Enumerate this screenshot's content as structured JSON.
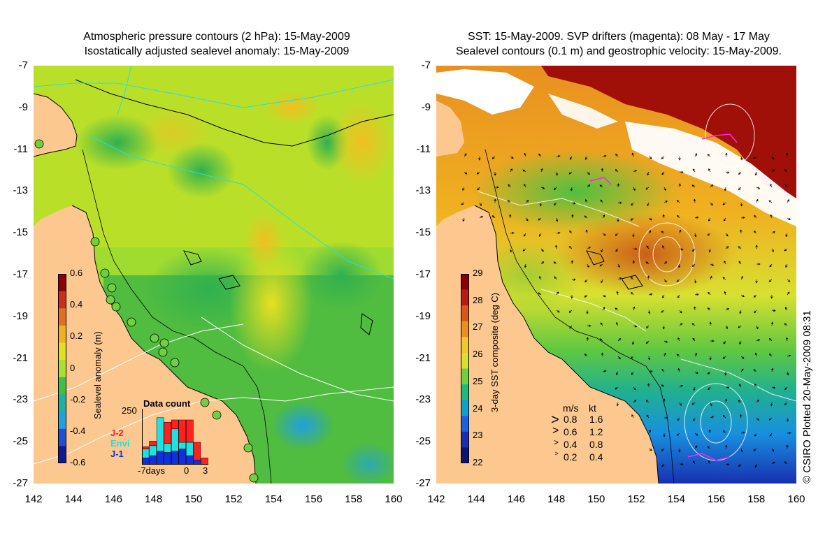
{
  "left_panel": {
    "title_line1": "Atmospheric pressure contours (2 hPa): 15-May-2009",
    "title_line2": "Isostatically adjusted sealevel anomaly: 15-May-2009",
    "colorbar": {
      "label": "Sealevel anomaly (m)",
      "ticks": [
        "0.6",
        "0.4",
        "0.2",
        "0",
        "-0.2",
        "-0.4",
        "-0.6"
      ],
      "colors": [
        "#8b0000",
        "#c8301a",
        "#e07020",
        "#f0b020",
        "#e0e020",
        "#a8e030",
        "#40c040",
        "#20b0a0",
        "#20a0e0",
        "#2050d0",
        "#101a90"
      ]
    },
    "inset": {
      "title": "Data count",
      "ymax_label": "250",
      "legend": [
        {
          "name": "J-2",
          "color": "#ff2020"
        },
        {
          "name": "Envi",
          "color": "#20e0e0"
        },
        {
          "name": "J-1",
          "color": "#1030e0"
        }
      ],
      "xlabels": [
        "-7days",
        "0",
        "3"
      ],
      "bars": [
        {
          "day": -7,
          "j1": 30,
          "envi": 40,
          "j2": 10
        },
        {
          "day": -6,
          "j1": 40,
          "envi": 45,
          "j2": 20
        },
        {
          "day": -5,
          "j1": 60,
          "envi": 150,
          "j2": 0
        },
        {
          "day": -4,
          "j1": 55,
          "envi": 40,
          "j2": 95
        },
        {
          "day": -3,
          "j1": 60,
          "envi": 100,
          "j2": 40
        },
        {
          "day": -2,
          "j1": 70,
          "envi": 30,
          "j2": 100
        },
        {
          "day": -1,
          "j1": 40,
          "envi": 60,
          "j2": 100
        },
        {
          "day": 0,
          "j1": 20,
          "envi": 0,
          "j2": 80
        },
        {
          "day": 1,
          "j1": 0,
          "envi": 0,
          "j2": 30
        }
      ]
    }
  },
  "right_panel": {
    "title_line1": "SST: 15-May-2009. SVP drifters (magenta): 08 May - 17 May",
    "title_line2": "Sealevel contours (0.1 m) and geostrophic velocity: 15-May-2009.",
    "colorbar": {
      "label": "3-day SST composite (deg C)",
      "ticks": [
        "29",
        "28",
        "27",
        "26",
        "25",
        "24",
        "23",
        "22"
      ],
      "colors": [
        "#8b0000",
        "#b81c10",
        "#d85818",
        "#e89020",
        "#f0c828",
        "#d8e030",
        "#70d040",
        "#20b880",
        "#10a0d0",
        "#2060e0",
        "#1830b0",
        "#0c1470"
      ]
    },
    "velocity_legend": {
      "header_ms": "m/s",
      "header_kt": "kt",
      "rows": [
        {
          "ms": "0.8",
          "kt": "1.6"
        },
        {
          "ms": "0.6",
          "kt": "1.2"
        },
        {
          "ms": "0.4",
          "kt": "0.8"
        },
        {
          "ms": "0.2",
          "kt": "0.4"
        }
      ]
    }
  },
  "axes": {
    "lat_ticks": [
      "-7",
      "-9",
      "-11",
      "-13",
      "-15",
      "-17",
      "-19",
      "-21",
      "-23",
      "-25",
      "-27"
    ],
    "lon_ticks": [
      "142",
      "144",
      "146",
      "148",
      "150",
      "152",
      "154",
      "156",
      "158",
      "160"
    ]
  },
  "credit": "© CSIRO Plotted 20-May-2009 08:31",
  "colors": {
    "land": "#fcc890",
    "coast": "#000000",
    "pressure_contour": "#20e0e0",
    "sealevel_contour": "#ffffff",
    "drifter": "#ff20ff",
    "cloud": "#ffffff"
  }
}
